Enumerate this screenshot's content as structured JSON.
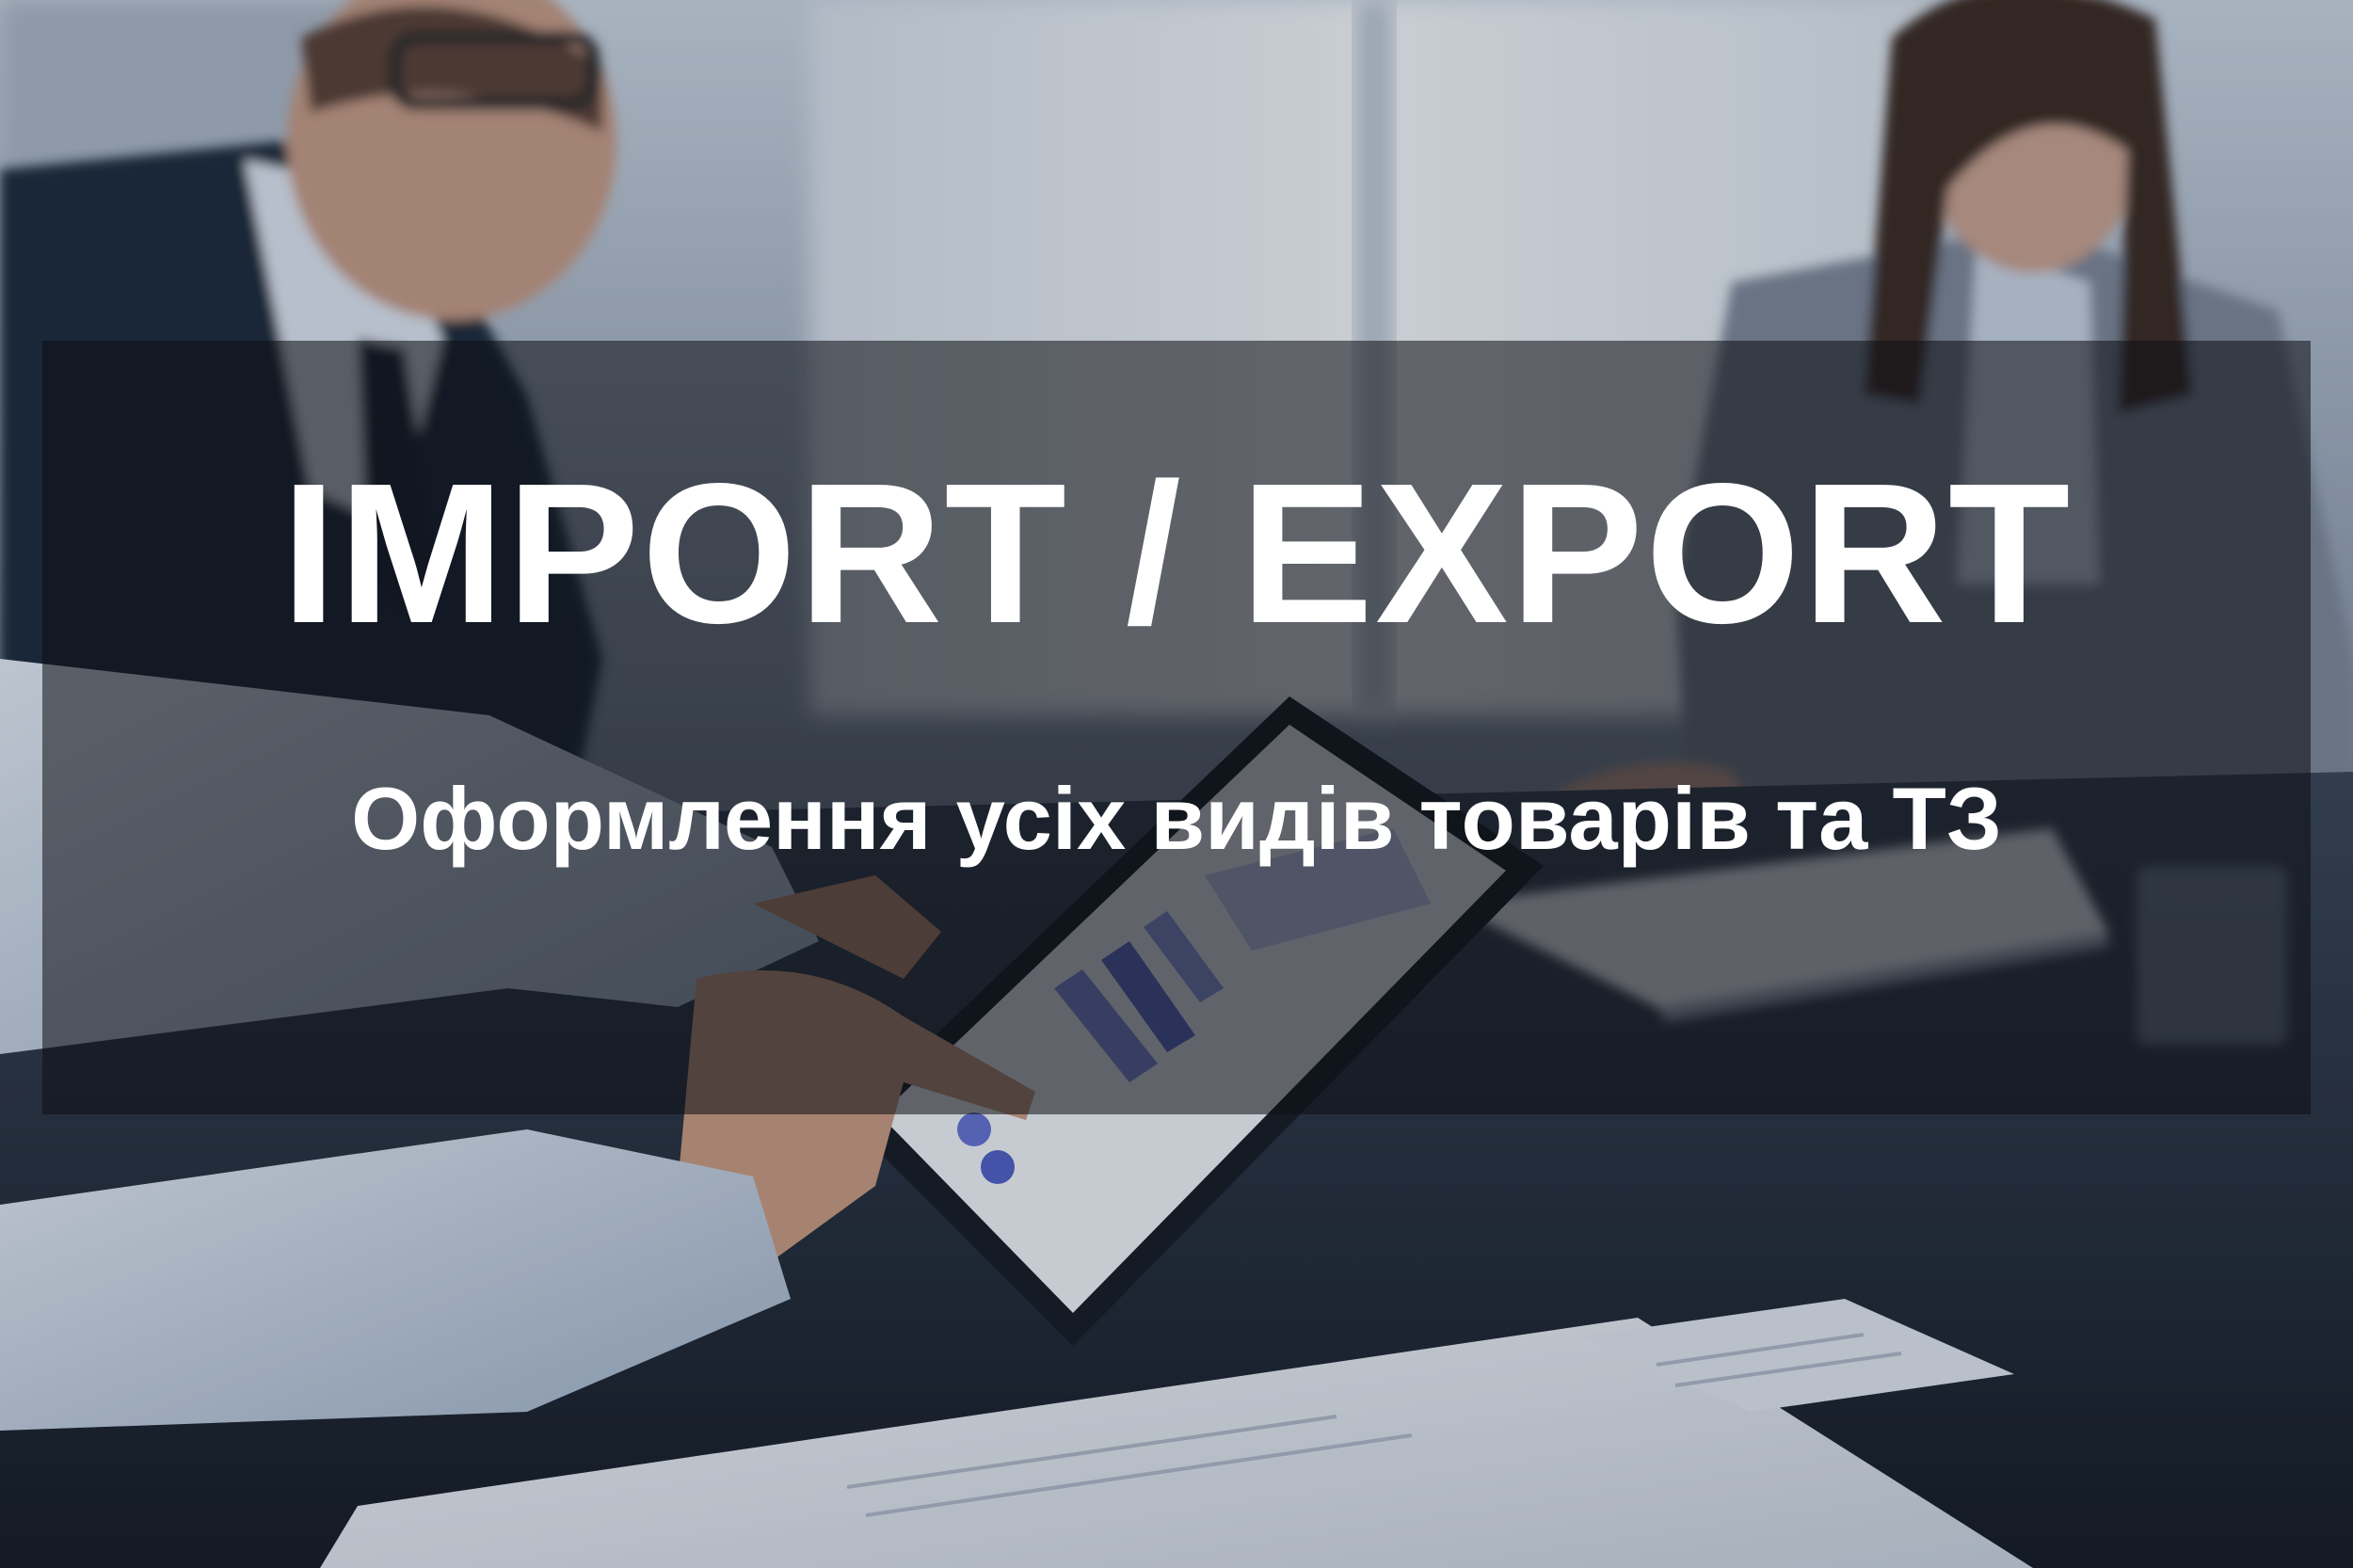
{
  "banner": {
    "headline": "IMPORT / EXPORT",
    "subline": "Оформлення усіх видів товарів та ТЗ"
  },
  "colors": {
    "banner_overlay": "#0c0e14",
    "text": "#ffffff"
  }
}
